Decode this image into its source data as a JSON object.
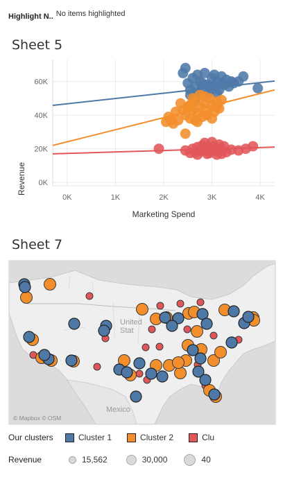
{
  "highlight": {
    "label": "Highlight N..",
    "value": "No items highlighted"
  },
  "sheet5": {
    "title": "Sheet 5"
  },
  "sheet7": {
    "title": "Sheet 7"
  },
  "colors": {
    "cluster1": "#4e79a7",
    "cluster2": "#f28e2b",
    "cluster3": "#e15759"
  },
  "chart_data": {
    "type": "scatter",
    "title": "",
    "xlabel": "Marketing Spend",
    "ylabel": "Revenue",
    "xlim": [
      -300,
      4300
    ],
    "ylim": [
      -2000,
      73000
    ],
    "x_ticks": [
      0,
      1000,
      2000,
      3000,
      4000
    ],
    "x_tick_labels": [
      "0K",
      "1K",
      "2K",
      "3K",
      "4K"
    ],
    "y_ticks": [
      0,
      20000,
      40000,
      60000
    ],
    "y_tick_labels": [
      "0K",
      "20K",
      "40K",
      "60K"
    ],
    "grid": true,
    "series": [
      {
        "color": "#4e79a7",
        "trend": [
          [
            -300,
            45800
          ],
          [
            4300,
            60300
          ]
        ],
        "points": [
          [
            2400,
            65000
          ],
          [
            2450,
            68000
          ],
          [
            2500,
            59000
          ],
          [
            2550,
            55000
          ],
          [
            2600,
            62000
          ],
          [
            2650,
            57000
          ],
          [
            2700,
            53000
          ],
          [
            2750,
            60000
          ],
          [
            2800,
            56000
          ],
          [
            2850,
            65000
          ],
          [
            2900,
            58000
          ],
          [
            2950,
            54000
          ],
          [
            3000,
            62000
          ],
          [
            3050,
            57000
          ],
          [
            3100,
            60000
          ],
          [
            3150,
            55000
          ],
          [
            3200,
            63000
          ],
          [
            3250,
            58000
          ],
          [
            3300,
            61000
          ],
          [
            3350,
            57000
          ],
          [
            3450,
            59000
          ],
          [
            3550,
            60000
          ],
          [
            3650,
            63000
          ],
          [
            3950,
            56000
          ],
          [
            2550,
            52000
          ],
          [
            2700,
            64000
          ],
          [
            2900,
            52000
          ],
          [
            3050,
            64000
          ],
          [
            3200,
            59000
          ],
          [
            2800,
            59000
          ],
          [
            2650,
            49000
          ],
          [
            2950,
            57000
          ],
          [
            3100,
            53000
          ],
          [
            3400,
            60000
          ]
        ]
      },
      {
        "color": "#f28e2b",
        "trend": [
          [
            -300,
            22000
          ],
          [
            4300,
            55000
          ]
        ],
        "points": [
          [
            2050,
            36000
          ],
          [
            2100,
            39000
          ],
          [
            2150,
            37000
          ],
          [
            2200,
            35000
          ],
          [
            2250,
            42000
          ],
          [
            2300,
            37000
          ],
          [
            2350,
            47000
          ],
          [
            2400,
            43000
          ],
          [
            2450,
            40000
          ],
          [
            2500,
            45000
          ],
          [
            2550,
            38000
          ],
          [
            2600,
            43000
          ],
          [
            2650,
            48000
          ],
          [
            2700,
            41000
          ],
          [
            2750,
            45000
          ],
          [
            2800,
            39000
          ],
          [
            2850,
            47000
          ],
          [
            2900,
            43000
          ],
          [
            2950,
            50000
          ],
          [
            3000,
            46000
          ],
          [
            3050,
            42000
          ],
          [
            3100,
            48000
          ],
          [
            3150,
            44000
          ],
          [
            3200,
            49000
          ],
          [
            2450,
            29000
          ],
          [
            2600,
            50000
          ],
          [
            2700,
            36000
          ],
          [
            2850,
            51000
          ],
          [
            3000,
            38000
          ],
          [
            2750,
            52000
          ],
          [
            2550,
            46000
          ],
          [
            2900,
            40000
          ],
          [
            3100,
            45000
          ],
          [
            2650,
            37000
          ]
        ]
      },
      {
        "color": "#e15759",
        "trend": [
          [
            -300,
            17000
          ],
          [
            4300,
            21000
          ]
        ],
        "points": [
          [
            1900,
            20000
          ],
          [
            2450,
            19000
          ],
          [
            2550,
            17500
          ],
          [
            2600,
            20000
          ],
          [
            2650,
            18000
          ],
          [
            2700,
            21000
          ],
          [
            2750,
            18500
          ],
          [
            2800,
            22000
          ],
          [
            2850,
            19000
          ],
          [
            2900,
            21000
          ],
          [
            2950,
            17500
          ],
          [
            3000,
            24000
          ],
          [
            3050,
            20000
          ],
          [
            3100,
            18500
          ],
          [
            3150,
            22500
          ],
          [
            3200,
            19500
          ],
          [
            3250,
            21500
          ],
          [
            3300,
            18000
          ],
          [
            3400,
            19500
          ],
          [
            3550,
            19000
          ],
          [
            3700,
            20000
          ],
          [
            3850,
            21500
          ],
          [
            2700,
            16500
          ],
          [
            2900,
            17000
          ],
          [
            3100,
            16500
          ],
          [
            3050,
            21500
          ],
          [
            2850,
            23500
          ],
          [
            3200,
            17000
          ]
        ]
      }
    ]
  },
  "map": {
    "attribution": "© Mapbox © OSM",
    "label_country": "United\nStat",
    "label_mexico": "Mexico"
  },
  "map_points": {
    "cluster1": [
      [
        35,
        410
      ],
      [
        36,
        414
      ],
      [
        107,
        467
      ],
      [
        153,
        470
      ],
      [
        150,
        477
      ],
      [
        238,
        458
      ],
      [
        257,
        459
      ],
      [
        292,
        453
      ],
      [
        298,
        467
      ],
      [
        337,
        449
      ],
      [
        352,
        466
      ],
      [
        42,
        486
      ],
      [
        70,
        518
      ],
      [
        103,
        520
      ],
      [
        172,
        533
      ],
      [
        183,
        537
      ],
      [
        201,
        524
      ],
      [
        218,
        539
      ],
      [
        234,
        543
      ],
      [
        278,
        505
      ],
      [
        286,
        536
      ],
      [
        296,
        548
      ],
      [
        334,
        494
      ],
      [
        309,
        569
      ],
      [
        196,
        572
      ],
      [
        289,
        517
      ],
      [
        248,
        470
      ],
      [
        64,
        512
      ],
      [
        358,
        457
      ]
    ],
    "cluster2": [
      [
        72,
        410
      ],
      [
        38,
        429
      ],
      [
        205,
        446
      ],
      [
        225,
        460
      ],
      [
        240,
        458
      ],
      [
        272,
        452
      ],
      [
        324,
        447
      ],
      [
        365,
        458
      ],
      [
        47,
        490
      ],
      [
        60,
        516
      ],
      [
        74,
        520
      ],
      [
        106,
        521
      ],
      [
        179,
        520
      ],
      [
        188,
        541
      ],
      [
        225,
        527
      ],
      [
        244,
        527
      ],
      [
        260,
        538
      ],
      [
        268,
        520
      ],
      [
        271,
        498
      ],
      [
        290,
        504
      ],
      [
        308,
        520
      ],
      [
        318,
        508
      ],
      [
        302,
        563
      ],
      [
        311,
        572
      ],
      [
        284,
        478
      ],
      [
        366,
        462
      ],
      [
        280,
        450
      ],
      [
        257,
        523
      ]
    ],
    "cluster3": [
      [
        129,
        427
      ],
      [
        231,
        441
      ],
      [
        260,
        438
      ],
      [
        289,
        436
      ],
      [
        219,
        475
      ],
      [
        210,
        501
      ],
      [
        152,
        488
      ],
      [
        48,
        512
      ],
      [
        140,
        529
      ],
      [
        201,
        539
      ],
      [
        212,
        548
      ],
      [
        270,
        475
      ],
      [
        308,
        484
      ],
      [
        344,
        490
      ],
      [
        285,
        526
      ],
      [
        296,
        556
      ],
      [
        230,
        500
      ]
    ]
  },
  "legend_clusters": {
    "title": "Our clusters",
    "items": [
      "Cluster 1",
      "Cluster 2",
      "Clu"
    ]
  },
  "legend_revenue": {
    "title": "Revenue",
    "items": [
      "15,562",
      "30,000",
      "40"
    ]
  }
}
